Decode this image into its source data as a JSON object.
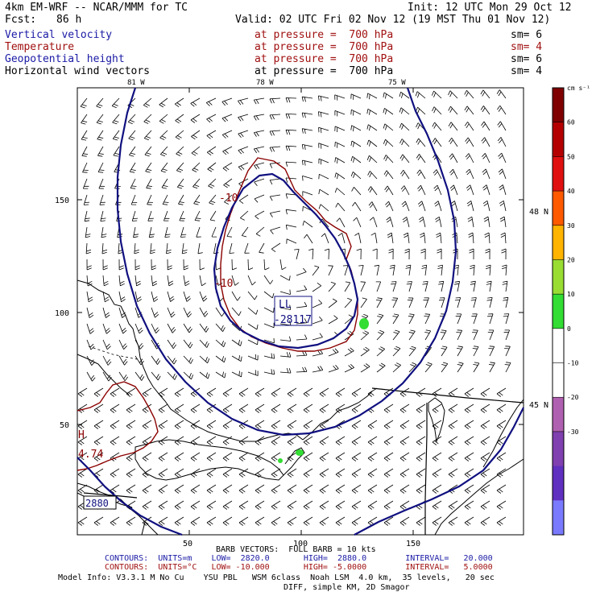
{
  "header": {
    "model_title": "4km EM-WRF -- NCAR/MMM for TC",
    "init": "Init: 12 UTC Mon 29 Oct 12",
    "fcst_label": "Fcst:",
    "fcst_value": "86 h",
    "valid": "Valid: 02 UTC Fri 02 Nov 12 (19 MST Thu 01 Nov 12)"
  },
  "fields": [
    {
      "name": "Vertical velocity",
      "level": "at pressure =  700 hPa",
      "sm": "sm= 6",
      "color": "#1a1aa6"
    },
    {
      "name": "Temperature",
      "level": "at pressure =  700 hPa",
      "sm": "sm= 4",
      "color": "#a01010"
    },
    {
      "name": "Geopotential height",
      "level": "at pressure =  700 hPa",
      "sm": "sm= 6",
      "color": "#1a1aa6"
    },
    {
      "name": "Horizontal wind vectors",
      "level": "at pressure =  700 hPa",
      "sm": "sm= 4",
      "color": "#000000"
    }
  ],
  "map": {
    "lon_labels": [
      "81 W",
      "78 W",
      "75 W"
    ],
    "lat_labels": [
      "48 N",
      "45 N"
    ],
    "y_axis_ticks": [
      "150",
      "100",
      "50"
    ],
    "x_axis_ticks": [
      "50",
      "100",
      "150"
    ],
    "low_label": "LL",
    "low_value": "-28117",
    "temp_labels": [
      "-10",
      "-10"
    ],
    "high_label": "H",
    "high_value": "4.74",
    "box_label": "2880"
  },
  "colorbar": {
    "units": "cm s⁻¹",
    "ticks": [
      "60",
      "50",
      "40",
      "30",
      "20",
      "10",
      "0",
      "-10",
      "-20",
      "-30"
    ],
    "colors": [
      "#800000",
      "#b40000",
      "#e01010",
      "#ff5a00",
      "#ffb400",
      "#99dd33",
      "#33dd33",
      "#ffffff",
      "#ffffff",
      "#b060b0",
      "#8040b0",
      "#6030c0",
      "#7a7aff"
    ]
  },
  "footer": {
    "barb": "BARB VECTORS:  FULL BARB = 10 kts",
    "contours_1": "CONTOURS:  UNITS=m    LOW=  2820.0       HIGH=  2880.0        INTERVAL=   20.000",
    "contours_2": "CONTOURS:  UNITS=°C   LOW= -10.000       HIGH= -5.0000        INTERVAL=   5.0000",
    "model_info": "Model Info: V3.3.1 M No Cu    YSU PBL   WSM 6class  Noah LSM  4.0 km,  35 levels,   20 sec",
    "model_info_2": "DIFF, simple KM, 2D Smagor"
  }
}
